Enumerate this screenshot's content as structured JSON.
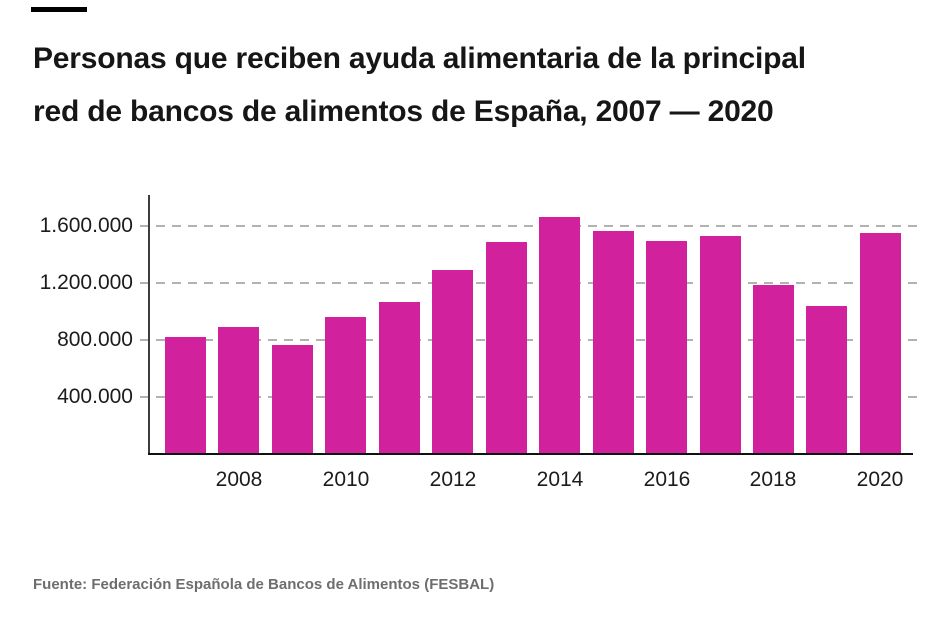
{
  "page": {
    "title_line1": "Personas que reciben ayuda alimentaria de la principal",
    "title_line2": "red de bancos de alimentos de España, 2007 — 2020",
    "source": "Fuente: Federación Española de Bancos de Alimentos (FESBAL)"
  },
  "chart_data": {
    "type": "bar",
    "title": "Personas que reciben ayuda alimentaria de la principal red de bancos de alimentos de España, 2007 — 2020",
    "categories": [
      "2007",
      "2008",
      "2009",
      "2010",
      "2011",
      "2012",
      "2013",
      "2014",
      "2015",
      "2016",
      "2017",
      "2018",
      "2019",
      "2020"
    ],
    "values": [
      825000,
      895000,
      765000,
      965000,
      1065000,
      1290000,
      1490000,
      1665000,
      1565000,
      1500000,
      1530000,
      1185000,
      1040000,
      1550000
    ],
    "x_tick_labels": [
      "2008",
      "2010",
      "2012",
      "2014",
      "2016",
      "2018",
      "2020"
    ],
    "x_tick_indices": [
      1,
      3,
      5,
      7,
      9,
      11,
      13
    ],
    "y_ticks": [
      400000,
      800000,
      1200000,
      1600000
    ],
    "y_tick_labels": [
      "400.000",
      "800.000",
      "1.200.000",
      "1.600.000"
    ],
    "ylim": [
      0,
      1820000
    ],
    "xlabel": "",
    "ylabel": "",
    "legend": "none",
    "grid": "horizontal-dashed",
    "bar_color": "#d2219c",
    "grid_color": "#b2b2b2",
    "axis_color": "#111111",
    "title_color": "#161616",
    "source_color": "#6e6e6e"
  }
}
